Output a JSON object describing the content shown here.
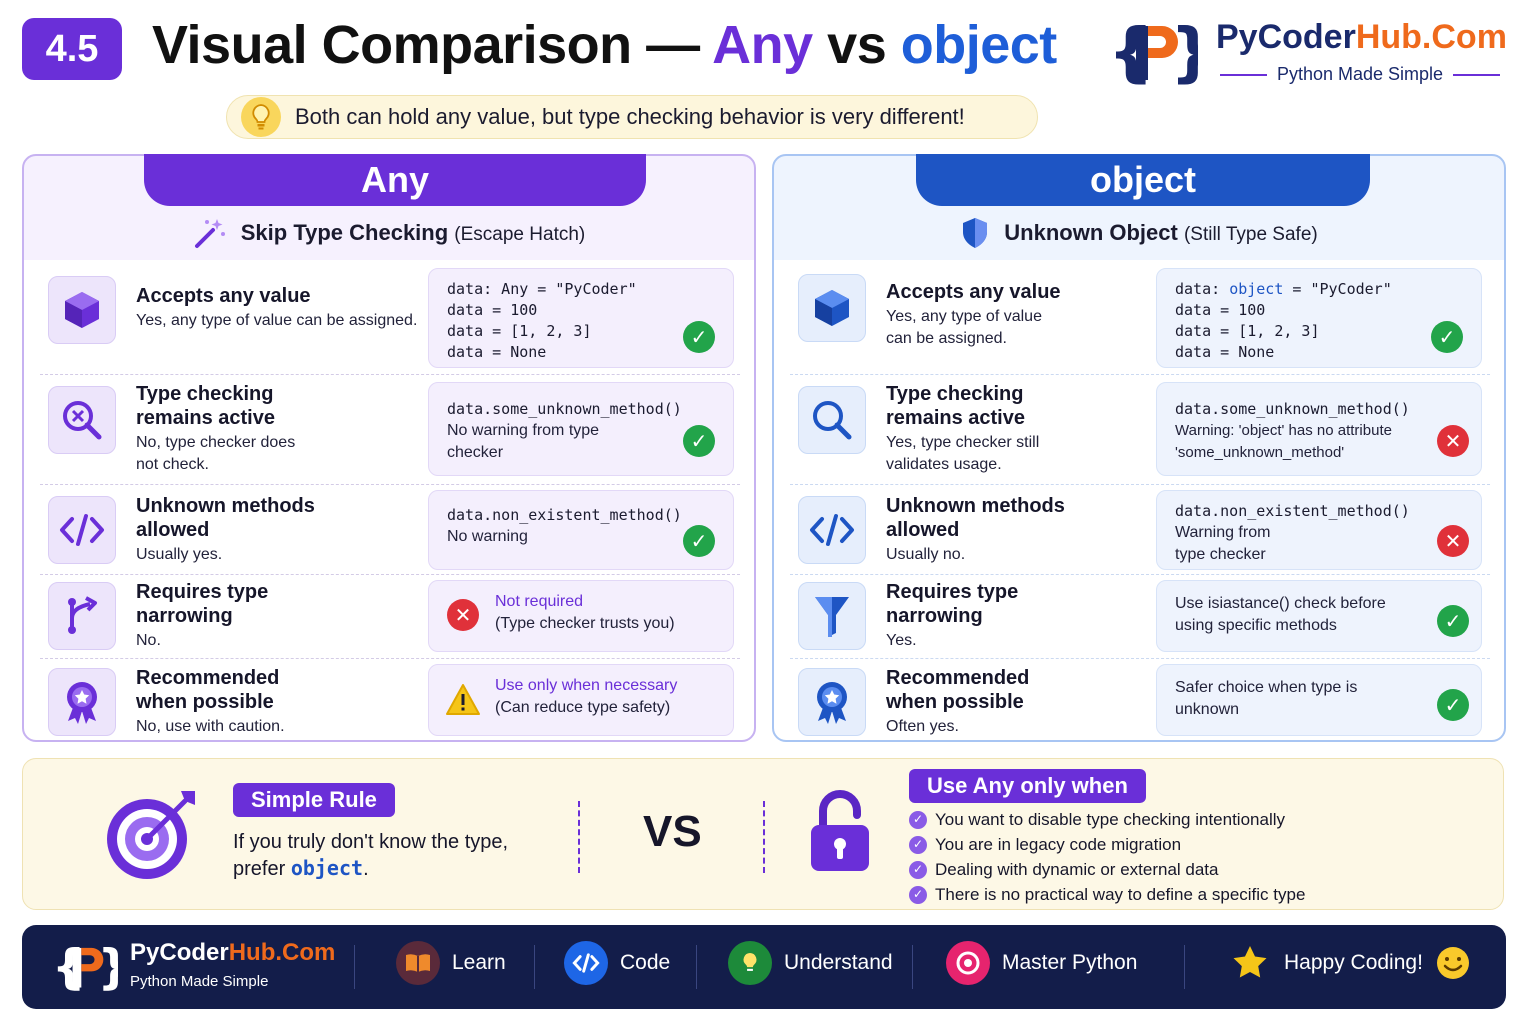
{
  "header": {
    "badge": "4.5",
    "title_prefix": "Visual Comparison — ",
    "title_any": "Any",
    "title_vs": " vs ",
    "title_object": "object",
    "brand_name_a": "PyCoder",
    "brand_name_b": "Hub.Com",
    "brand_tagline": "Python Made Simple",
    "subtitle": "Both can hold any value, but type checking behavior is very different!"
  },
  "colors": {
    "any": "#6a2fd8",
    "object": "#1e55c4",
    "ok": "#22a44a",
    "no": "#e0313a",
    "warn": "#f5c518",
    "brand_orange": "#ef6a1c"
  },
  "any_panel": {
    "title": "Any",
    "subtitle_bold": "Skip Type Checking",
    "subtitle_small": "(Escape Hatch)",
    "rows": [
      {
        "icon": "cube-icon",
        "title": "Accepts any value",
        "desc": "Yes, any type of value can be assigned.",
        "code": [
          "data: Any = \"PyCoder\"",
          "data = 100",
          "data = [1, 2, 3]",
          "data = None"
        ],
        "status": "ok"
      },
      {
        "icon": "search-x-icon",
        "title": "Type checking remains active",
        "desc": "No, type checker does not check.",
        "code": [
          "data.some_unknown_method()"
        ],
        "note": "No warning from type checker",
        "status": "ok"
      },
      {
        "icon": "code-icon",
        "title": "Unknown methods allowed",
        "desc": "Usually yes.",
        "code": [
          "data.non_existent_method()"
        ],
        "note": "No warning",
        "status": "ok"
      },
      {
        "icon": "branch-icon",
        "title": "Requires type narrowing",
        "desc": "No.",
        "highlight": "Not required",
        "note": "(Type checker trusts you)",
        "status": "no"
      },
      {
        "icon": "award-icon",
        "title": "Recommended when possible",
        "desc": "No, use with caution.",
        "highlight": "Use only when necessary",
        "note": "(Can reduce type safety)",
        "status": "warn"
      }
    ]
  },
  "object_panel": {
    "title": "object",
    "subtitle_bold": "Unknown Object",
    "subtitle_small": "(Still Type Safe)",
    "rows": [
      {
        "icon": "cube-icon",
        "title": "Accepts any value",
        "desc": "Yes, any type of value can be assigned.",
        "code_kw": "object",
        "code": [
          "data: ",
          " = \"PyCoder\"",
          "data = 100",
          "data = [1, 2, 3]",
          "data = None"
        ],
        "status": "ok"
      },
      {
        "icon": "search-icon",
        "title": "Type checking remains active",
        "desc": "Yes, type checker still validates usage.",
        "code": [
          "data.some_unknown_method()"
        ],
        "note": "Warning: 'object' has no attribute 'some_unknown_method'",
        "status": "no"
      },
      {
        "icon": "code-icon",
        "title": "Unknown methods allowed",
        "desc": "Usually no.",
        "code": [
          "data.non_existent_method()"
        ],
        "note": "Warning from type checker",
        "status": "no"
      },
      {
        "icon": "filter-icon",
        "title": "Requires type narrowing",
        "desc": "Yes.",
        "note": "Use isiastance() check before using specific methods",
        "status": "ok"
      },
      {
        "icon": "award-icon",
        "title": "Recommended when possible",
        "desc": "Often yes.",
        "note": "Safer choice when type is unknown",
        "status": "ok"
      }
    ]
  },
  "rule": {
    "chip": "Simple Rule",
    "text_a": "If you truly don't know the type,",
    "text_b": "prefer ",
    "text_kw": "object",
    "text_c": ".",
    "vs": "VS",
    "when_chip": "Use Any only when",
    "when_items": [
      "You want to disable type checking intentionally",
      "You are in legacy code migration",
      "Dealing with dynamic or external data",
      "There is no practical way to define a specific type"
    ]
  },
  "footer": {
    "brand_a": "PyCoder",
    "brand_b": "Hub.Com",
    "tagline": "Python Made Simple",
    "items": [
      {
        "icon": "book-icon",
        "label": "Learn"
      },
      {
        "icon": "code-icon",
        "label": "Code"
      },
      {
        "icon": "bulb-icon",
        "label": "Understand"
      },
      {
        "icon": "target-icon",
        "label": "Master Python"
      },
      {
        "icon": "star-icon",
        "label": "Happy Coding!"
      }
    ]
  }
}
